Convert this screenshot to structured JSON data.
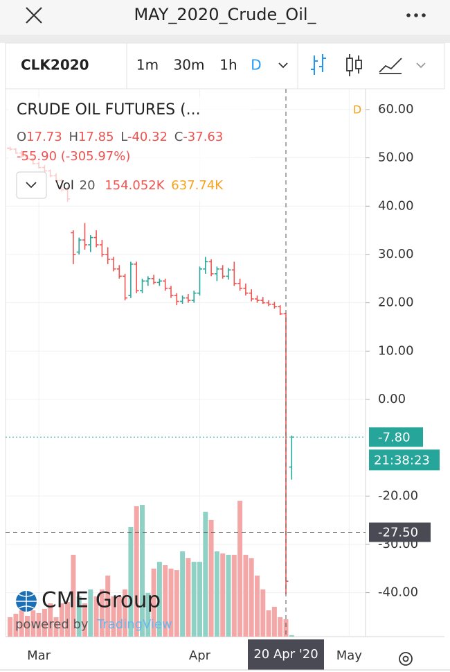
{
  "header": {
    "title": "MAY_2020_Crude_Oil_"
  },
  "toolbar": {
    "symbol": "CLK2020",
    "intervals": [
      "1m",
      "30m",
      "1h",
      "D"
    ]
  },
  "chart_data": {
    "type": "ohlc",
    "title": "CRUDE OIL FUTURES (...",
    "interval": "D",
    "ohlc_legend": [
      {
        "key": "O",
        "value": "17.73"
      },
      {
        "key": "H",
        "value": "17.85"
      },
      {
        "key": "L",
        "value": "-40.32"
      },
      {
        "key": "C",
        "value": "-37.63"
      }
    ],
    "change": "-55.90 (-305.97%)",
    "volume_legend": {
      "name": "Vol",
      "length": "20",
      "value": "154.052K",
      "average": "637.74K"
    },
    "categories": [
      null,
      null,
      null,
      null,
      null,
      "Mar",
      null,
      null,
      null,
      null,
      null,
      null,
      null,
      null,
      null,
      null,
      null,
      null,
      null,
      null,
      null,
      null,
      null,
      null,
      null,
      null,
      null,
      null,
      null,
      null,
      null,
      null,
      null,
      "Apr",
      null,
      null,
      null,
      null,
      null,
      null,
      null,
      null,
      null,
      null,
      null,
      null,
      null,
      null,
      "20 Apr '20",
      null,
      null,
      null,
      null,
      null,
      null,
      null,
      null,
      null,
      null,
      "May",
      null,
      null
    ],
    "open": [
      52.0,
      51.8,
      51.0,
      50.3,
      49.8,
      48.8,
      48.0,
      47.3,
      46.3,
      45.3,
      43.4,
      34.5,
      30.5,
      33.0,
      32.0,
      33.5,
      32.0,
      30.0,
      29.0,
      27.0,
      25.5,
      21.5,
      28.0,
      22.5,
      24.5,
      25.0,
      24.2,
      24.5,
      23.0,
      21.5,
      20.3,
      21.0,
      20.5,
      22.0,
      27.0,
      28.5,
      26.0,
      27.0,
      25.5,
      26.8,
      24.0,
      23.0,
      22.0,
      20.8,
      20.5,
      20.0,
      19.7,
      19.2,
      17.73,
      -14.0,
      null,
      null,
      null,
      null,
      null,
      null,
      null,
      null,
      null,
      null,
      null,
      null
    ],
    "high": [
      52.3,
      52.0,
      51.5,
      50.6,
      50.0,
      49.2,
      48.5,
      47.6,
      46.8,
      45.6,
      44.0,
      35.0,
      33.5,
      36.5,
      34.0,
      35.0,
      33.0,
      31.5,
      29.5,
      27.8,
      26.0,
      28.5,
      28.5,
      25.0,
      25.5,
      25.8,
      25.0,
      25.0,
      23.5,
      22.0,
      21.5,
      21.8,
      22.5,
      27.5,
      29.5,
      29.0,
      27.5,
      27.8,
      27.2,
      28.5,
      25.0,
      24.0,
      22.8,
      21.5,
      21.2,
      20.5,
      20.2,
      19.5,
      17.85,
      -7.5,
      null,
      null,
      null,
      null,
      null,
      null,
      null,
      null,
      null,
      null,
      null,
      null
    ],
    "low": [
      51.5,
      50.8,
      50.0,
      49.5,
      48.6,
      47.8,
      47.0,
      46.0,
      45.0,
      43.0,
      41.0,
      28.0,
      30.0,
      31.0,
      30.5,
      31.5,
      29.5,
      28.0,
      26.5,
      25.0,
      20.5,
      21.0,
      22.0,
      22.0,
      23.5,
      23.8,
      23.5,
      22.5,
      21.0,
      19.5,
      19.8,
      20.0,
      20.0,
      21.5,
      26.0,
      25.5,
      24.5,
      25.0,
      24.8,
      23.5,
      22.5,
      21.5,
      20.3,
      20.0,
      19.8,
      19.3,
      18.8,
      17.5,
      -40.32,
      -16.6,
      null,
      null,
      null,
      null,
      null,
      null,
      null,
      null,
      null,
      null,
      null,
      null
    ],
    "close": [
      51.8,
      51.0,
      50.3,
      49.8,
      48.8,
      48.0,
      47.3,
      46.3,
      45.3,
      43.4,
      41.5,
      30.0,
      33.0,
      32.0,
      33.5,
      32.0,
      30.0,
      29.0,
      27.0,
      25.5,
      21.0,
      28.0,
      22.5,
      24.5,
      25.0,
      24.2,
      24.5,
      23.0,
      21.5,
      20.3,
      21.0,
      20.5,
      22.0,
      27.0,
      28.5,
      26.0,
      27.0,
      25.5,
      26.8,
      24.0,
      23.0,
      22.0,
      20.8,
      20.5,
      20.0,
      19.7,
      19.2,
      17.7,
      -37.63,
      -7.8,
      null,
      null,
      null,
      null,
      null,
      null,
      null,
      null,
      null,
      null,
      null,
      null
    ],
    "volume": [
      103,
      121,
      139,
      110,
      139,
      125,
      147,
      176,
      103,
      176,
      183,
      433,
      213,
      176,
      250,
      213,
      250,
      323,
      213,
      213,
      250,
      580,
      690,
      697,
      231,
      360,
      396,
      378,
      360,
      352,
      451,
      415,
      396,
      396,
      661,
      617,
      451,
      440,
      433,
      433,
      719,
      433,
      415,
      323,
      250,
      139,
      158,
      103,
      92,
      8,
      null,
      null,
      null,
      null,
      null,
      null,
      null,
      null,
      null,
      null,
      null,
      null
    ],
    "volume_lim": [
      0,
      800
    ],
    "up_color": "#26a69a",
    "down_color": "#ef5350",
    "up_volume_color": "#90d1c5",
    "down_volume_color": "#f4a7a7",
    "ylim": [
      -49.1,
      64.3
    ],
    "yticks": [
      {
        "value": 60,
        "label": "60.00"
      },
      {
        "value": 50,
        "label": "50.00"
      },
      {
        "value": 40,
        "label": "40.00"
      },
      {
        "value": 30,
        "label": "30.00"
      },
      {
        "value": 20,
        "label": "20.00"
      },
      {
        "value": 10,
        "label": "10.00"
      },
      {
        "value": 0,
        "label": "0.00"
      },
      {
        "value": -20,
        "label": "-20.00"
      },
      {
        "value": -30,
        "label": "-30.00"
      },
      {
        "value": -40,
        "label": "-40.00"
      }
    ],
    "grid": true,
    "last_price": {
      "value": -7.8,
      "label": "-7.80",
      "color": "#26a69a"
    },
    "countdown": "21:38:23",
    "crosshair": {
      "x": 48,
      "y": -27.5,
      "y_label": "-27.50",
      "color": "#4a4a55"
    },
    "branding": {
      "name": "CME Group",
      "powered": "powered by",
      "provider": "TradingView"
    }
  }
}
